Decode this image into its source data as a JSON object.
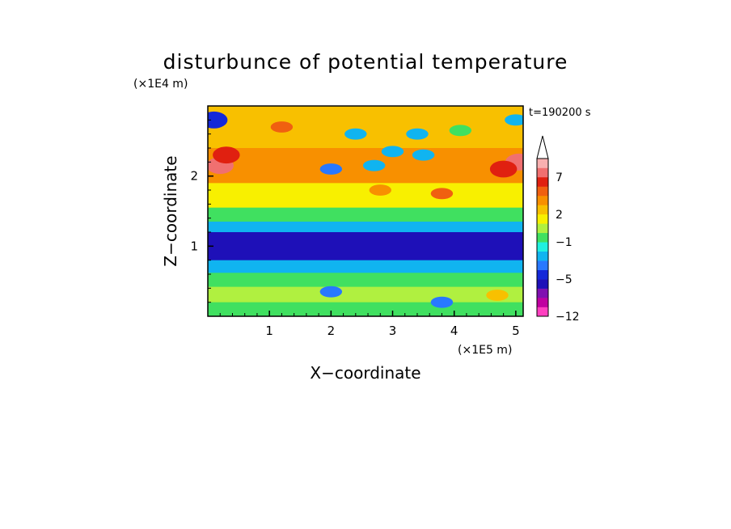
{
  "chart_data": {
    "type": "heatmap",
    "title": "disturbunce of potential temperature",
    "xlabel": "X−coordinate",
    "ylabel": "Z−coordinate",
    "x_unit": "(×1E5 m)",
    "y_unit": "(×1E4 m)",
    "time_label": "t=190200 s",
    "xlim": [
      0,
      5.12
    ],
    "ylim": [
      0,
      3.0
    ],
    "x_ticks": [
      "1",
      "2",
      "3",
      "4",
      "5"
    ],
    "y_ticks": [
      "1",
      "2"
    ],
    "colorbar": {
      "levels": [
        -12,
        -11,
        -9,
        -7,
        -5,
        -4,
        -3,
        -2,
        -1,
        0,
        1,
        2,
        3,
        4,
        5,
        7,
        9,
        11
      ],
      "colors": [
        "#ff40c0",
        "#c000a0",
        "#8010b0",
        "#1e10b8",
        "#1428d8",
        "#2878ff",
        "#10b4f0",
        "#20f0e0",
        "#40e060",
        "#b0f040",
        "#f8f000",
        "#f8c000",
        "#f89000",
        "#f06010",
        "#e02010",
        "#f07070",
        "#f8b0b0"
      ],
      "labels": [
        "−12",
        "−5",
        "−1",
        "2",
        "7"
      ],
      "extend": "max"
    },
    "layers": [
      {
        "z": [
          2.4,
          3.0
        ],
        "value": 2.5
      },
      {
        "z": [
          1.9,
          2.4
        ],
        "value": 3.5
      },
      {
        "z": [
          1.55,
          1.9
        ],
        "value": 1.5
      },
      {
        "z": [
          1.35,
          1.55
        ],
        "value": -0.5
      },
      {
        "z": [
          1.2,
          1.35
        ],
        "value": -2.5
      },
      {
        "z": [
          0.8,
          1.2
        ],
        "value": -6
      },
      {
        "z": [
          0.62,
          0.8
        ],
        "value": -2.5
      },
      {
        "z": [
          0.42,
          0.62
        ],
        "value": -0.5
      },
      {
        "z": [
          0.2,
          0.42
        ],
        "value": 0.5
      },
      {
        "z": [
          0.0,
          0.2
        ],
        "value": -0.5
      }
    ],
    "features": [
      {
        "x": 0.2,
        "z": 2.15,
        "value": 8
      },
      {
        "x": 5.05,
        "z": 2.2,
        "value": 8
      },
      {
        "x": 4.8,
        "z": 2.1,
        "value": 5.5
      },
      {
        "x": 0.3,
        "z": 2.3,
        "value": 5.5
      },
      {
        "x": 1.2,
        "z": 2.7,
        "value": 4
      },
      {
        "x": 2.4,
        "z": 2.6,
        "value": -3
      },
      {
        "x": 2.0,
        "z": 2.1,
        "value": -4
      },
      {
        "x": 3.0,
        "z": 2.35,
        "value": -3
      },
      {
        "x": 2.7,
        "z": 2.15,
        "value": -3
      },
      {
        "x": 3.5,
        "z": 2.3,
        "value": -3
      },
      {
        "x": 3.4,
        "z": 2.6,
        "value": -3
      },
      {
        "x": 0.1,
        "z": 2.8,
        "value": -5
      },
      {
        "x": 5.0,
        "z": 2.8,
        "value": -3
      },
      {
        "x": 3.8,
        "z": 1.75,
        "value": 4.5
      },
      {
        "x": 2.8,
        "z": 1.8,
        "value": 3.5
      },
      {
        "x": 4.1,
        "z": 2.65,
        "value": -0.5
      },
      {
        "x": 2.0,
        "z": 0.35,
        "value": -4
      },
      {
        "x": 3.8,
        "z": 0.2,
        "value": -4
      },
      {
        "x": 4.7,
        "z": 0.3,
        "value": 2.5
      }
    ]
  }
}
